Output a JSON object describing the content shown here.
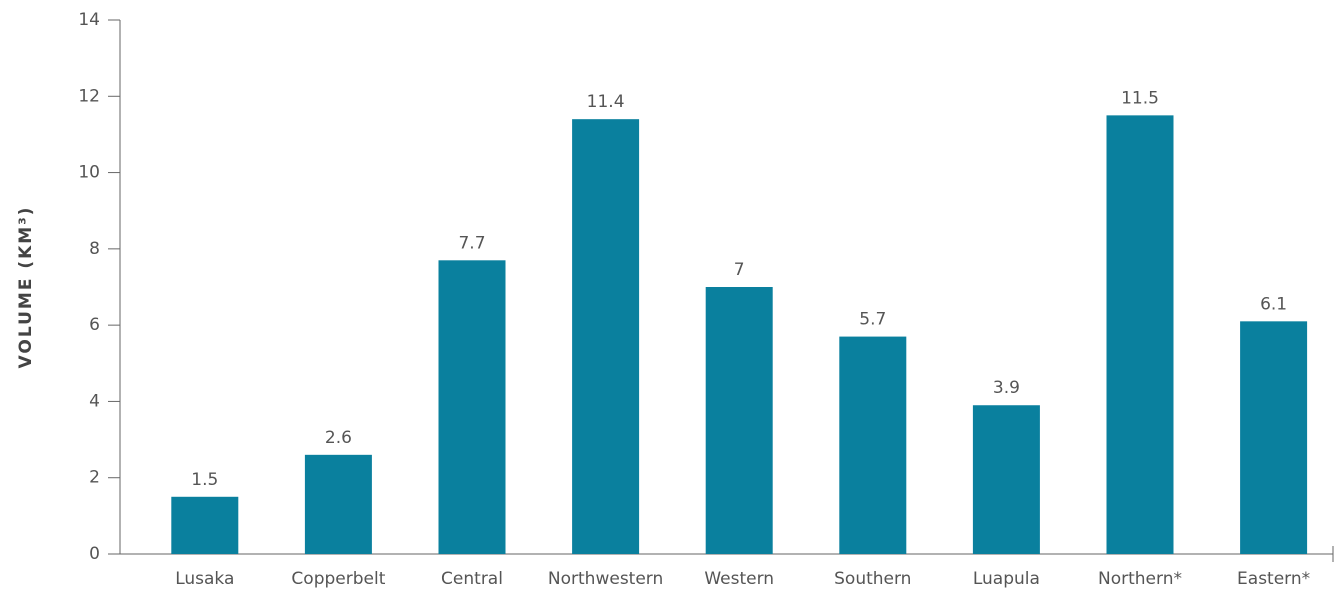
{
  "chart_data": {
    "type": "bar",
    "y_label": "VOLUME (KM³)",
    "categories": [
      "Lusaka",
      "Copperbelt",
      "Central",
      "Northwestern",
      "Western",
      "Southern",
      "Luapula",
      "Northern*",
      "Eastern*"
    ],
    "values": [
      1.5,
      2.6,
      7.7,
      11.4,
      7,
      5.7,
      3.9,
      11.5,
      6.1
    ],
    "color": "#0a809e",
    "ylim": [
      0,
      14
    ],
    "yticks": [
      0,
      2,
      4,
      6,
      8,
      10,
      12,
      14
    ],
    "grid": false
  }
}
